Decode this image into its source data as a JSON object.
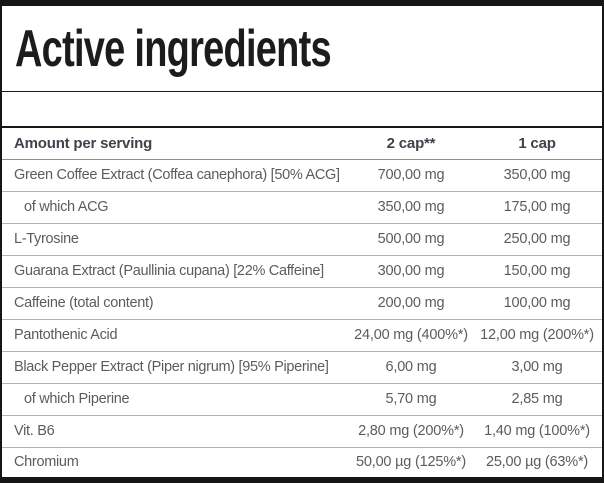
{
  "panel": {
    "title": "Active ingredients"
  },
  "table": {
    "columns": [
      "Amount per serving",
      "2 cap**",
      "1 cap"
    ],
    "rows": [
      {
        "name": "Green Coffee Extract (Coffea canephora) [50% ACG]",
        "indent": false,
        "per_2cap": "700,00 mg",
        "per_1cap": "350,00 mg"
      },
      {
        "name": "of which ACG",
        "indent": true,
        "per_2cap": "350,00 mg",
        "per_1cap": "175,00 mg"
      },
      {
        "name": "L-Tyrosine",
        "indent": false,
        "per_2cap": "500,00 mg",
        "per_1cap": "250,00 mg"
      },
      {
        "name": "Guarana Extract (Paullinia cupana) [22% Caffeine]",
        "indent": false,
        "per_2cap": "300,00 mg",
        "per_1cap": "150,00 mg"
      },
      {
        "name": "Caffeine (total content)",
        "indent": false,
        "per_2cap": "200,00 mg",
        "per_1cap": "100,00 mg"
      },
      {
        "name": "Pantothenic Acid",
        "indent": false,
        "per_2cap": "24,00 mg (400%*)",
        "per_1cap": "12,00 mg (200%*)"
      },
      {
        "name": "Black Pepper Extract (Piper nigrum) [95% Piperine]",
        "indent": false,
        "per_2cap": "6,00 mg",
        "per_1cap": "3,00 mg"
      },
      {
        "name": "of which Piperine",
        "indent": true,
        "per_2cap": "5,70 mg",
        "per_1cap": "2,85 mg"
      },
      {
        "name": "Vit. B6",
        "indent": false,
        "per_2cap": "2,80 mg (200%*)",
        "per_1cap": "1,40 mg (100%*)"
      },
      {
        "name": "Chromium",
        "indent": false,
        "per_2cap": "50,00 µg (125%*)",
        "per_1cap": "25,00 µg (63%*)"
      }
    ]
  },
  "colors": {
    "border_black": "#161616",
    "title_text": "#1c1c1c",
    "header_text": "#3e434c",
    "body_text": "#5a5c5f",
    "row_separator": "#b3b3b3",
    "header_separator": "#8f8f8f"
  }
}
